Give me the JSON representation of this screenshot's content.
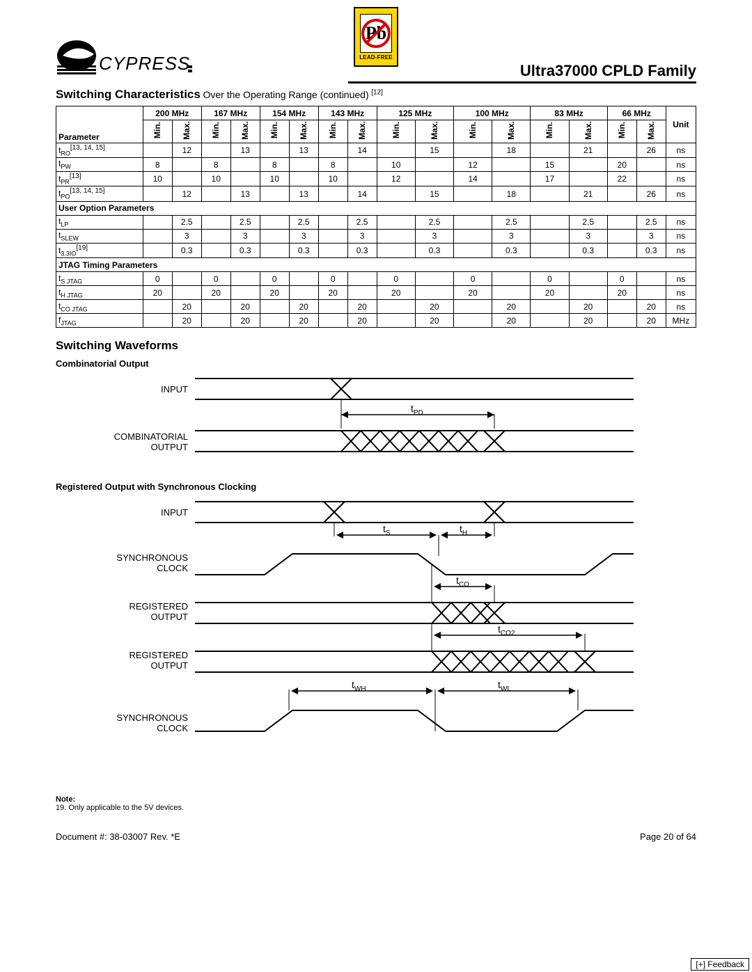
{
  "header": {
    "brand": "CYPRESS",
    "leadfree_label": "LEAD-FREE",
    "pb_glyph": "Pb",
    "title": "Ultra37000 CPLD Family"
  },
  "section_title_main": "Switching Characteristics",
  "section_title_sub_prefix": " Over the Operating Range (continued)",
  "section_title_ref": "[12]",
  "table": {
    "freq_headers": [
      "200 MHz",
      "167 MHz",
      "154 MHz",
      "143 MHz",
      "125 MHz",
      "100 MHz",
      "83 MHz",
      "66 MHz"
    ],
    "minmax": [
      "Min.",
      "Max."
    ],
    "param_label": "Parameter",
    "unit_label": "Unit",
    "section_labels": {
      "user_option": "User Option Parameters",
      "jtag": "JTAG Timing Parameters"
    },
    "rows_top": [
      {
        "name": "t",
        "sub": "RO",
        "sup": "[13, 14, 15]",
        "vals": [
          "",
          "12",
          "",
          "13",
          "",
          "13",
          "",
          "14",
          "",
          "15",
          "",
          "18",
          "",
          "21",
          "",
          "26"
        ],
        "unit": "ns"
      },
      {
        "name": "t",
        "sub": "PW",
        "sup": "",
        "vals": [
          "8",
          "",
          "8",
          "",
          "8",
          "",
          "8",
          "",
          "10",
          "",
          "12",
          "",
          "15",
          "",
          "20",
          ""
        ],
        "unit": "ns"
      },
      {
        "name": "t",
        "sub": "PR",
        "sup": "[13]",
        "vals": [
          "10",
          "",
          "10",
          "",
          "10",
          "",
          "10",
          "",
          "12",
          "",
          "14",
          "",
          "17",
          "",
          "22",
          ""
        ],
        "unit": "ns"
      },
      {
        "name": "t",
        "sub": "PO",
        "sup": "[13, 14, 15]",
        "vals": [
          "",
          "12",
          "",
          "13",
          "",
          "13",
          "",
          "14",
          "",
          "15",
          "",
          "18",
          "",
          "21",
          "",
          "26"
        ],
        "unit": "ns"
      }
    ],
    "rows_user": [
      {
        "name": "t",
        "sub": "LP",
        "sup": "",
        "vals": [
          "",
          "2.5",
          "",
          "2.5",
          "",
          "2.5",
          "",
          "2.5",
          "",
          "2.5",
          "",
          "2.5",
          "",
          "2.5",
          "",
          "2.5"
        ],
        "unit": "ns"
      },
      {
        "name": "t",
        "sub": "SLEW",
        "sup": "",
        "vals": [
          "",
          "3",
          "",
          "3",
          "",
          "3",
          "",
          "3",
          "",
          "3",
          "",
          "3",
          "",
          "3",
          "",
          "3"
        ],
        "unit": "ns"
      },
      {
        "name": "t",
        "sub": "3.3IO",
        "sup": "[19]",
        "vals": [
          "",
          "0.3",
          "",
          "0.3",
          "",
          "0.3",
          "",
          "0.3",
          "",
          "0.3",
          "",
          "0.3",
          "",
          "0.3",
          "",
          "0.3"
        ],
        "unit": "ns"
      }
    ],
    "rows_jtag": [
      {
        "name": "t",
        "sub": "S JTAG",
        "sup": "",
        "vals": [
          "0",
          "",
          "0",
          "",
          "0",
          "",
          "0",
          "",
          "0",
          "",
          "0",
          "",
          "0",
          "",
          "0",
          ""
        ],
        "unit": "ns"
      },
      {
        "name": "t",
        "sub": "H JTAG",
        "sup": "",
        "vals": [
          "20",
          "",
          "20",
          "",
          "20",
          "",
          "20",
          "",
          "20",
          "",
          "20",
          "",
          "20",
          "",
          "20",
          ""
        ],
        "unit": "ns"
      },
      {
        "name": "t",
        "sub": "CO JTAG",
        "sup": "",
        "vals": [
          "",
          "20",
          "",
          "20",
          "",
          "20",
          "",
          "20",
          "",
          "20",
          "",
          "20",
          "",
          "20",
          "",
          "20"
        ],
        "unit": "ns"
      },
      {
        "name": "f",
        "sub": "JTAG",
        "sup": "",
        "vals": [
          "",
          "20",
          "",
          "20",
          "",
          "20",
          "",
          "20",
          "",
          "20",
          "",
          "20",
          "",
          "20",
          "",
          "20"
        ],
        "unit": "MHz"
      }
    ]
  },
  "waveforms_title": "Switching Waveforms",
  "combo_title": "Combinatorial Output",
  "reg_title": "Registered Output with Synchronous Clocking",
  "combo_labels": {
    "input": "INPUT",
    "output_l1": "COMBINATORIAL",
    "output_l2": "OUTPUT",
    "tpd": "t",
    "tpd_sub": "PD"
  },
  "reg_labels": {
    "input": "INPUT",
    "sync_clock_l1": "SYNCHRONOUS",
    "sync_clock_l2": "CLOCK",
    "reg_out_l1": "REGISTERED",
    "reg_out_l2": "OUTPUT",
    "ts": "t",
    "ts_sub": "S",
    "th": "t",
    "th_sub": "H",
    "tco": "t",
    "tco_sub": "CO",
    "tco2": "t",
    "tco2_sub": "CO2",
    "twh": "t",
    "twh_sub": "WH",
    "twl": "t",
    "twl_sub": "WL"
  },
  "note": {
    "header": "Note:",
    "line": "19. Only applicable to the 5V devices."
  },
  "footer": {
    "doc": "Document #: 38-03007  Rev. *E",
    "page": "Page 20 of 64",
    "feedback": "[+] Feedback"
  }
}
